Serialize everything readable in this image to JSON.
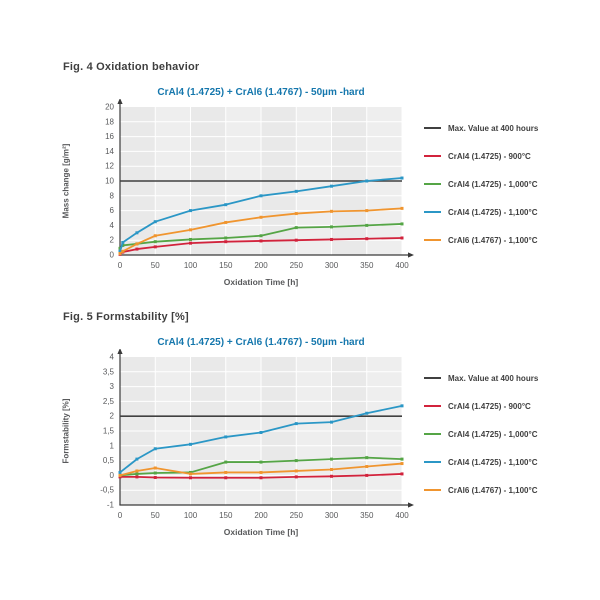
{
  "styles": {
    "page_bg": "#ffffff",
    "accent_title": "#1577ad",
    "heading_color": "#3f3f3f",
    "tick_color": "#58595b",
    "plot_bg": "#e9e9e9",
    "plot_band": "#eeeeee",
    "grid_color": "#ffffff",
    "axis_color": "#3a3a3a"
  },
  "chart_data": [
    {
      "type": "line",
      "figure_label": "Fig. 4 Oxidation behavior",
      "title": "CrAl4 (1.4725) + CrAl6 (1.4767) - 50µm -hard",
      "xlabel": "Oxidation Time [h]",
      "ylabel": "Mass change [g/m²]",
      "xlim": [
        0,
        400
      ],
      "ylim": [
        0,
        20
      ],
      "xticks": [
        0,
        50,
        100,
        150,
        200,
        250,
        300,
        350,
        400
      ],
      "ytick_labels_top_to_bottom": [
        "20",
        "18",
        "16",
        "14",
        "12",
        "10",
        "8",
        "6",
        "4",
        "2",
        "0"
      ],
      "grid": true,
      "legend_position": "right",
      "x": [
        0,
        4,
        24,
        50,
        100,
        150,
        200,
        250,
        300,
        350,
        400
      ],
      "series": [
        {
          "name": "Max. Value at 400 hours",
          "color": "#404040",
          "style": "hline",
          "value": 10
        },
        {
          "name": "CrAl4 (1.4725) - 900°C",
          "color": "#d2233c",
          "style": "line",
          "values": [
            0.1,
            0.4,
            0.8,
            1.1,
            1.6,
            1.8,
            1.9,
            2.0,
            2.1,
            2.2,
            2.3
          ]
        },
        {
          "name": "CrAl4 (1.4725) - 1,000°C",
          "color": "#55a546",
          "style": "line",
          "values": [
            0.9,
            1.3,
            1.5,
            1.8,
            2.1,
            2.3,
            2.6,
            3.7,
            3.8,
            4.0,
            4.2
          ]
        },
        {
          "name": "CrAl4 (1.4725) - 1,100°C",
          "color": "#2b97c6",
          "style": "line",
          "values": [
            0.5,
            1.7,
            3.0,
            4.5,
            6.0,
            6.8,
            8.0,
            8.6,
            9.3,
            10.0,
            10.4
          ]
        },
        {
          "name": "CrAl6 (1.4767) - 1,100°C",
          "color": "#f0952f",
          "style": "line",
          "values": [
            0.2,
            0.5,
            1.5,
            2.6,
            3.4,
            4.4,
            5.1,
            5.6,
            5.9,
            6.0,
            6.3
          ]
        }
      ]
    },
    {
      "type": "line",
      "figure_label": "Fig. 5 Formstability [%]",
      "title": "CrAl4 (1.4725) + CrAl6 (1.4767) - 50µm -hard",
      "xlabel": "Oxidation Time [h]",
      "ylabel": "Formstability [%]",
      "xlim": [
        0,
        400
      ],
      "ylim": [
        -1,
        4
      ],
      "xticks": [
        0,
        50,
        100,
        150,
        200,
        250,
        300,
        350,
        400
      ],
      "ytick_labels_top_to_bottom": [
        "4",
        "3,5",
        "3",
        "2,5",
        "2",
        "1,5",
        "1",
        "0,5",
        "0",
        "-0,5",
        "-1"
      ],
      "grid": true,
      "legend_position": "right",
      "x": [
        0,
        24,
        50,
        100,
        150,
        200,
        250,
        300,
        350,
        400
      ],
      "series": [
        {
          "name": "Max. Value at 400 hours",
          "color": "#404040",
          "style": "hline",
          "value": 2
        },
        {
          "name": "CrAl4 (1.4725) - 900°C",
          "color": "#d2233c",
          "style": "line",
          "values": [
            -0.05,
            -0.05,
            -0.07,
            -0.08,
            -0.08,
            -0.08,
            -0.05,
            -0.03,
            0.0,
            0.05
          ]
        },
        {
          "name": "CrAl4 (1.4725) - 1,000°C",
          "color": "#55a546",
          "style": "line",
          "values": [
            0.0,
            0.05,
            0.08,
            0.1,
            0.45,
            0.45,
            0.5,
            0.55,
            0.6,
            0.55
          ]
        },
        {
          "name": "CrAl4 (1.4725) - 1,100°C",
          "color": "#2b97c6",
          "style": "line",
          "values": [
            0.1,
            0.55,
            0.9,
            1.05,
            1.3,
            1.45,
            1.75,
            1.8,
            2.1,
            2.35
          ]
        },
        {
          "name": "CrAl6 (1.4767) - 1,100°C",
          "color": "#f0952f",
          "style": "line",
          "values": [
            0.0,
            0.15,
            0.25,
            0.05,
            0.1,
            0.1,
            0.15,
            0.2,
            0.3,
            0.4
          ]
        }
      ]
    }
  ]
}
